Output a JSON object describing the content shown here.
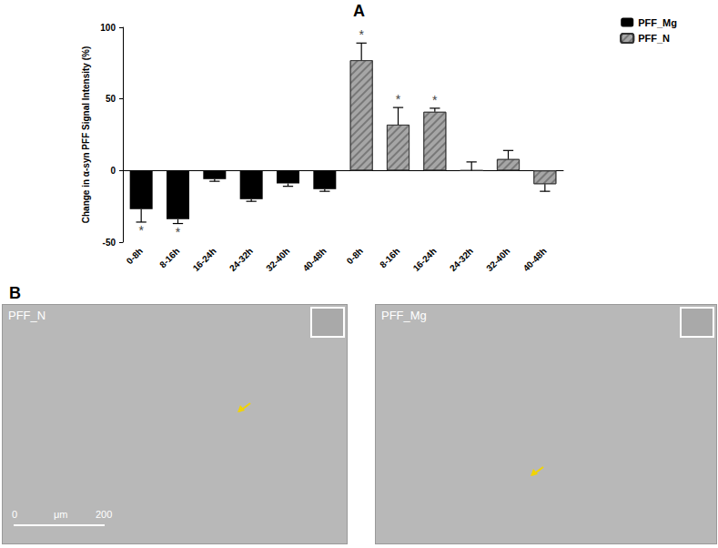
{
  "chart_data": {
    "type": "bar",
    "panel_label": "A",
    "categories": [
      "0-8h",
      "8-16h",
      "16-24h",
      "24-32h",
      "32-40h",
      "40-48h",
      "0-8h",
      "8-16h",
      "16-24h",
      "24-32h",
      "32-40h",
      "40-48h"
    ],
    "series": [
      {
        "name": "PFF_Mg",
        "color": "#000000",
        "values": [
          -27,
          -34,
          -6,
          -20,
          -9,
          -13,
          null,
          null,
          null,
          null,
          null,
          null
        ],
        "errors": [
          9,
          3,
          1.5,
          1.5,
          2,
          1.5,
          null,
          null,
          null,
          null,
          null,
          null
        ],
        "annotations": [
          "*",
          "*",
          null,
          null,
          null,
          null,
          null,
          null,
          null,
          null,
          null,
          null
        ]
      },
      {
        "name": "PFF_N",
        "color": "#a6a6a6",
        "values": [
          null,
          null,
          null,
          null,
          null,
          null,
          77,
          32,
          41,
          0,
          8,
          -9.5
        ],
        "errors": [
          null,
          null,
          null,
          null,
          null,
          null,
          12,
          12,
          2.5,
          6,
          6,
          5
        ],
        "annotations": [
          null,
          null,
          null,
          null,
          null,
          null,
          "*",
          "*",
          "*",
          null,
          null,
          null
        ]
      }
    ],
    "y_label": "Change in α-syn PFF Signal Intensity (%)",
    "ylim": [
      -50,
      100
    ],
    "yticks": [
      -50,
      0,
      50,
      100
    ],
    "legend": "top-right",
    "grid": false
  },
  "panel_b": {
    "panel_label": "B",
    "images": [
      {
        "label": "PFF_N",
        "scale_bar": {
          "ticks": [
            0,
            200
          ],
          "unit": "μm"
        }
      },
      {
        "label": "PFF_Mg"
      }
    ]
  }
}
